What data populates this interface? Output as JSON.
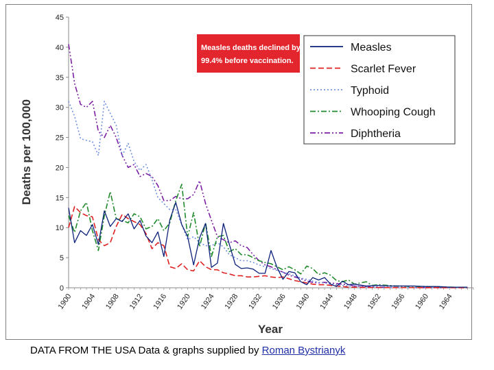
{
  "chart_data": {
    "type": "line",
    "title": "",
    "xlabel": "Year",
    "ylabel": "Deaths per 100,000",
    "xlim": [
      1900,
      1968
    ],
    "ylim": [
      0,
      45
    ],
    "grid": false,
    "legend_position": "top-right",
    "y_ticks": [
      "0",
      "5",
      "10",
      "15",
      "20",
      "25",
      "30",
      "35",
      "40",
      "45"
    ],
    "x_ticks": [
      "1900",
      "1904",
      "1908",
      "1912",
      "1916",
      "1920",
      "1924",
      "1928",
      "1932",
      "1936",
      "1940",
      "1944",
      "1948",
      "1952",
      "1956",
      "1960",
      "1964"
    ],
    "annotation": "Measles deaths declined by 99.4% before vaccination.",
    "series": [
      {
        "name": "Measles",
        "color": "#0a1f7a",
        "dash": "solid",
        "points": [
          [
            1900,
            13.3
          ],
          [
            1901,
            7.5
          ],
          [
            1902,
            9.5
          ],
          [
            1903,
            8.7
          ],
          [
            1904,
            10.5
          ],
          [
            1905,
            7.2
          ],
          [
            1906,
            12.8
          ],
          [
            1907,
            10.2
          ],
          [
            1908,
            11.5
          ],
          [
            1909,
            11
          ],
          [
            1910,
            12.3
          ],
          [
            1911,
            9.8
          ],
          [
            1912,
            11.2
          ],
          [
            1913,
            8.6
          ],
          [
            1914,
            7.5
          ],
          [
            1915,
            9.3
          ],
          [
            1916,
            5.2
          ],
          [
            1917,
            11.3
          ],
          [
            1918,
            14.2
          ],
          [
            1919,
            10.5
          ],
          [
            1920,
            8.5
          ],
          [
            1921,
            3.8
          ],
          [
            1922,
            8.3
          ],
          [
            1923,
            10.7
          ],
          [
            1924,
            3.4
          ],
          [
            1925,
            4.1
          ],
          [
            1926,
            10.7
          ],
          [
            1927,
            7.2
          ],
          [
            1928,
            3.9
          ],
          [
            1929,
            3.2
          ],
          [
            1930,
            3.3
          ],
          [
            1931,
            3.1
          ],
          [
            1932,
            2.4
          ],
          [
            1933,
            2.4
          ],
          [
            1934,
            6.2
          ],
          [
            1935,
            3.4
          ],
          [
            1936,
            1.4
          ],
          [
            1937,
            2.7
          ],
          [
            1938,
            2.5
          ],
          [
            1939,
            1
          ],
          [
            1940,
            0.5
          ],
          [
            1941,
            1.7
          ],
          [
            1942,
            1.3
          ],
          [
            1943,
            1.7
          ],
          [
            1944,
            0.6
          ],
          [
            1945,
            0.2
          ],
          [
            1946,
            1.1
          ],
          [
            1947,
            0.5
          ],
          [
            1948,
            0.6
          ],
          [
            1950,
            0.3
          ],
          [
            1952,
            0.4
          ],
          [
            1954,
            0.3
          ],
          [
            1956,
            0.3
          ],
          [
            1958,
            0.3
          ],
          [
            1960,
            0.2
          ],
          [
            1962,
            0.2
          ],
          [
            1964,
            0.1
          ],
          [
            1966,
            0.1
          ],
          [
            1967,
            0.1
          ]
        ]
      },
      {
        "name": "Scarlet Fever",
        "color": "#e02020",
        "dash": "dashed",
        "points": [
          [
            1900,
            10
          ],
          [
            1901,
            13.5
          ],
          [
            1902,
            12.5
          ],
          [
            1903,
            12
          ],
          [
            1904,
            11.8
          ],
          [
            1905,
            8
          ],
          [
            1906,
            7
          ],
          [
            1907,
            7.5
          ],
          [
            1908,
            10.2
          ],
          [
            1909,
            12.2
          ],
          [
            1910,
            11.5
          ],
          [
            1911,
            11
          ],
          [
            1912,
            10.5
          ],
          [
            1913,
            9
          ],
          [
            1914,
            6.5
          ],
          [
            1915,
            7.5
          ],
          [
            1916,
            7
          ],
          [
            1917,
            3.5
          ],
          [
            1918,
            3.2
          ],
          [
            1919,
            4
          ],
          [
            1920,
            3
          ],
          [
            1921,
            2.8
          ],
          [
            1922,
            4.5
          ],
          [
            1923,
            3.5
          ],
          [
            1924,
            3
          ],
          [
            1925,
            3
          ],
          [
            1926,
            2.5
          ],
          [
            1927,
            2.3
          ],
          [
            1928,
            2
          ],
          [
            1929,
            2
          ],
          [
            1930,
            1.8
          ],
          [
            1931,
            1.8
          ],
          [
            1932,
            1.9
          ],
          [
            1933,
            2
          ],
          [
            1934,
            1.8
          ],
          [
            1935,
            1.7
          ],
          [
            1936,
            1.8
          ],
          [
            1937,
            1.5
          ],
          [
            1938,
            1.2
          ],
          [
            1939,
            1
          ],
          [
            1940,
            0.8
          ],
          [
            1941,
            0.6
          ],
          [
            1942,
            0.5
          ],
          [
            1943,
            0.5
          ],
          [
            1944,
            0.4
          ],
          [
            1945,
            0.3
          ],
          [
            1946,
            0.2
          ],
          [
            1947,
            0.1
          ],
          [
            1950,
            0.05
          ],
          [
            1960,
            0.02
          ],
          [
            1967,
            0.01
          ]
        ]
      },
      {
        "name": "Typhoid",
        "color": "#6f8fe0",
        "dash": "dotted",
        "points": [
          [
            1900,
            31
          ],
          [
            1901,
            28.5
          ],
          [
            1902,
            24.8
          ],
          [
            1903,
            24.5
          ],
          [
            1904,
            24.3
          ],
          [
            1905,
            22
          ],
          [
            1906,
            31
          ],
          [
            1907,
            29
          ],
          [
            1908,
            27
          ],
          [
            1909,
            22
          ],
          [
            1910,
            24
          ],
          [
            1911,
            21
          ],
          [
            1912,
            19.5
          ],
          [
            1913,
            20.5
          ],
          [
            1914,
            18
          ],
          [
            1915,
            15
          ],
          [
            1916,
            14
          ],
          [
            1917,
            13
          ],
          [
            1918,
            13
          ],
          [
            1919,
            10.5
          ],
          [
            1920,
            8
          ],
          [
            1921,
            8.5
          ],
          [
            1922,
            7.5
          ],
          [
            1923,
            7
          ],
          [
            1924,
            7
          ],
          [
            1925,
            7.5
          ],
          [
            1926,
            6.8
          ],
          [
            1927,
            5.5
          ],
          [
            1928,
            5
          ],
          [
            1929,
            4.5
          ],
          [
            1930,
            4.5
          ],
          [
            1931,
            4.2
          ],
          [
            1932,
            3.8
          ],
          [
            1933,
            3.5
          ],
          [
            1934,
            3.2
          ],
          [
            1935,
            2.9
          ],
          [
            1936,
            2.6
          ],
          [
            1937,
            2.3
          ],
          [
            1938,
            2
          ],
          [
            1939,
            1.6
          ],
          [
            1940,
            1.4
          ],
          [
            1941,
            1.1
          ],
          [
            1942,
            0.9
          ],
          [
            1943,
            0.8
          ],
          [
            1944,
            0.6
          ],
          [
            1945,
            0.5
          ],
          [
            1946,
            0.4
          ],
          [
            1947,
            0.3
          ],
          [
            1948,
            0.3
          ],
          [
            1950,
            0.2
          ],
          [
            1955,
            0.1
          ],
          [
            1960,
            0.05
          ],
          [
            1967,
            0.02
          ]
        ]
      },
      {
        "name": "Whooping Cough",
        "color": "#1f8a2a",
        "dash": "dashdot",
        "points": [
          [
            1900,
            12
          ],
          [
            1901,
            9.2
          ],
          [
            1902,
            12.8
          ],
          [
            1903,
            14.2
          ],
          [
            1904,
            9.5
          ],
          [
            1905,
            6.2
          ],
          [
            1906,
            12
          ],
          [
            1907,
            16
          ],
          [
            1908,
            11.5
          ],
          [
            1909,
            11.2
          ],
          [
            1910,
            10.8
          ],
          [
            1911,
            12.3
          ],
          [
            1912,
            11.8
          ],
          [
            1913,
            9.8
          ],
          [
            1914,
            10.2
          ],
          [
            1915,
            11.5
          ],
          [
            1916,
            9.5
          ],
          [
            1917,
            10.8
          ],
          [
            1918,
            14.5
          ],
          [
            1919,
            17.2
          ],
          [
            1920,
            8.5
          ],
          [
            1921,
            12.5
          ],
          [
            1922,
            6.8
          ],
          [
            1923,
            10.8
          ],
          [
            1924,
            5.2
          ],
          [
            1925,
            8.5
          ],
          [
            1926,
            8.7
          ],
          [
            1927,
            6
          ],
          [
            1928,
            6.5
          ],
          [
            1929,
            5.5
          ],
          [
            1930,
            5.5
          ],
          [
            1931,
            5
          ],
          [
            1932,
            4.5
          ],
          [
            1933,
            4.2
          ],
          [
            1934,
            4
          ],
          [
            1935,
            3.5
          ],
          [
            1936,
            3
          ],
          [
            1937,
            3.5
          ],
          [
            1938,
            3
          ],
          [
            1939,
            2.3
          ],
          [
            1940,
            3.6
          ],
          [
            1941,
            3.2
          ],
          [
            1942,
            2.2
          ],
          [
            1943,
            2.5
          ],
          [
            1944,
            2.1
          ],
          [
            1945,
            1.2
          ],
          [
            1946,
            1
          ],
          [
            1947,
            1.3
          ],
          [
            1948,
            0.6
          ],
          [
            1950,
            1
          ],
          [
            1951,
            0.4
          ],
          [
            1952,
            0.5
          ],
          [
            1955,
            0.3
          ],
          [
            1960,
            0.2
          ],
          [
            1964,
            0.1
          ],
          [
            1967,
            0.05
          ]
        ]
      },
      {
        "name": "Diphtheria",
        "color": "#7b1fa2",
        "dash": "dashdotdot",
        "points": [
          [
            1900,
            40.5
          ],
          [
            1901,
            34
          ],
          [
            1902,
            30.5
          ],
          [
            1903,
            30
          ],
          [
            1904,
            31
          ],
          [
            1905,
            26
          ],
          [
            1906,
            25
          ],
          [
            1907,
            27
          ],
          [
            1908,
            25
          ],
          [
            1909,
            22
          ],
          [
            1910,
            20
          ],
          [
            1911,
            20.5
          ],
          [
            1912,
            18.5
          ],
          [
            1913,
            19
          ],
          [
            1914,
            18.5
          ],
          [
            1915,
            17
          ],
          [
            1916,
            14.5
          ],
          [
            1917,
            14.5
          ],
          [
            1918,
            15.2
          ],
          [
            1919,
            14.8
          ],
          [
            1920,
            14.8
          ],
          [
            1921,
            15.5
          ],
          [
            1922,
            17.8
          ],
          [
            1923,
            14
          ],
          [
            1924,
            11.2
          ],
          [
            1925,
            8.5
          ],
          [
            1926,
            8
          ],
          [
            1927,
            7.5
          ],
          [
            1928,
            7.8
          ],
          [
            1929,
            7
          ],
          [
            1930,
            6.7
          ],
          [
            1931,
            5.5
          ],
          [
            1932,
            4.5
          ],
          [
            1933,
            3.8
          ],
          [
            1934,
            3.5
          ],
          [
            1935,
            3
          ],
          [
            1936,
            2.6
          ],
          [
            1937,
            2.1
          ],
          [
            1938,
            1.8
          ],
          [
            1939,
            1.5
          ],
          [
            1940,
            1.1
          ],
          [
            1941,
            0.9
          ],
          [
            1942,
            0.8
          ],
          [
            1943,
            0.9
          ],
          [
            1944,
            0.8
          ],
          [
            1945,
            0.7
          ],
          [
            1946,
            0.6
          ],
          [
            1947,
            0.5
          ],
          [
            1948,
            0.3
          ],
          [
            1950,
            0.2
          ],
          [
            1952,
            0.1
          ],
          [
            1955,
            0.05
          ],
          [
            1960,
            0.02
          ],
          [
            1967,
            0.01
          ]
        ]
      }
    ]
  },
  "footer": {
    "prefix": "DATA FROM THE USA",
    "credit": "Data & graphs supplied by",
    "author": "Roman Bystrianyk"
  }
}
